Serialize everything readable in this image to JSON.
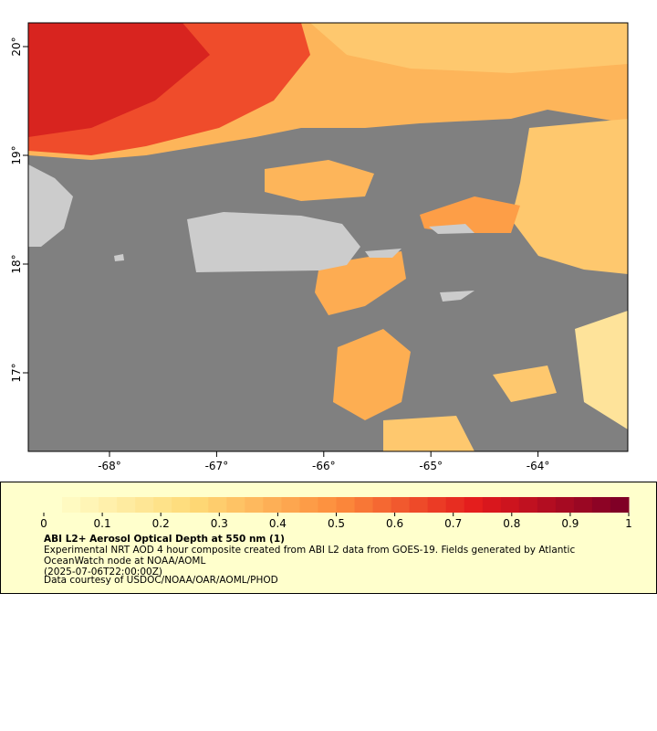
{
  "map": {
    "lat_labels": [
      "20°",
      "19°",
      "18°",
      "17°"
    ],
    "lon_labels": [
      "-68°",
      "-67°",
      "-66°",
      "-65°",
      "-64°"
    ]
  },
  "colorbar": {
    "ticks": [
      0,
      0.1,
      0.2,
      0.3,
      0.4,
      0.5,
      0.6,
      0.7,
      0.8,
      0.9,
      1
    ]
  },
  "legend": {
    "title": "ABI L2+ Aerosol Optical Depth at 550 nm (1)",
    "description": "Experimental NRT AOD 4 hour composite created from ABI L2 data from GOES-19. Fields generated by Atlantic OceanWatch node at NOAA/AOML",
    "date": "(2025-07-06T22:00:00Z)",
    "credit": "Data courtesy of USDOC/NOAA/OAR/AOML/PHOD"
  }
}
